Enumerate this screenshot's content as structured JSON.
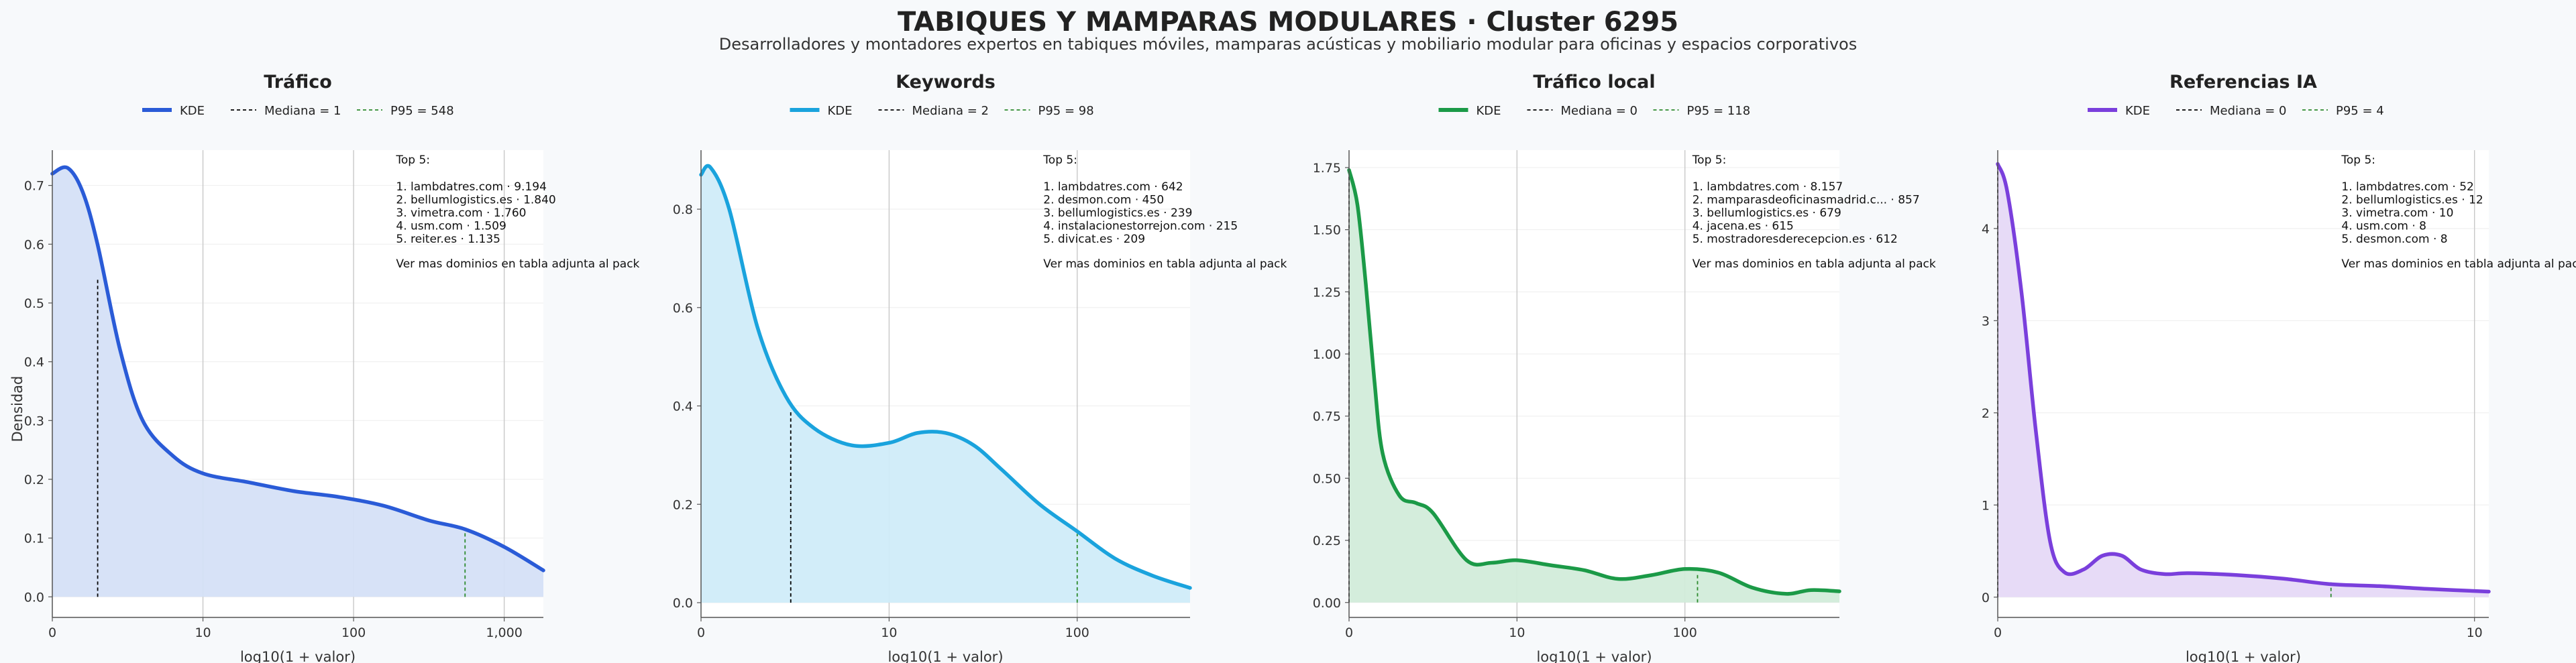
{
  "page": {
    "title": "TABIQUES Y MAMPARAS MODULARES · Cluster 6295",
    "subtitle": "Desarrolladores y montadores expertos en tabiques móviles, mamparas acústicas y mobiliario modular para oficinas y espacios corporativos",
    "shared_ylabel": "Densidad"
  },
  "colors": {
    "background": "#f7f9fb",
    "median_line": "#000000",
    "p95_line": "#2e8b2e",
    "grid": "#c8c8c8"
  },
  "chart_data": [
    {
      "type": "area",
      "title": "Tráfico",
      "color": "#2a5bd7",
      "fill": "#d5e0f7",
      "xlabel": "log10(1 + valor)",
      "ylabel": "Densidad",
      "xscale": "log10(1+x)",
      "xlim": [
        0,
        3.26
      ],
      "ylim": [
        -0.035,
        0.76
      ],
      "xticks": [
        {
          "v": 0,
          "label": "0"
        },
        {
          "v": 1,
          "label": "10"
        },
        {
          "v": 2,
          "label": "100"
        },
        {
          "v": 3,
          "label": "1,000"
        }
      ],
      "yticks": [
        {
          "v": 0,
          "label": "0.0"
        },
        {
          "v": 0.1,
          "label": "0.1"
        },
        {
          "v": 0.2,
          "label": "0.2"
        },
        {
          "v": 0.3,
          "label": "0.3"
        },
        {
          "v": 0.4,
          "label": "0.4"
        },
        {
          "v": 0.5,
          "label": "0.5"
        },
        {
          "v": 0.6,
          "label": "0.6"
        },
        {
          "v": 0.7,
          "label": "0.7"
        }
      ],
      "x": [
        0,
        0.1,
        0.2,
        0.3,
        0.45,
        0.6,
        0.8,
        1.0,
        1.3,
        1.6,
        1.9,
        2.2,
        2.5,
        2.74,
        3.0,
        3.26
      ],
      "y": [
        0.72,
        0.73,
        0.69,
        0.6,
        0.42,
        0.3,
        0.24,
        0.21,
        0.195,
        0.18,
        0.17,
        0.155,
        0.13,
        0.115,
        0.085,
        0.045
      ],
      "legend": {
        "kde": "KDE",
        "median": "Mediana = 1",
        "p95": "P95 = 548"
      },
      "median_x": 0.301,
      "median_y": 0.54,
      "p95_x": 2.74,
      "p95_y": 0.115,
      "top5": {
        "heading": "Top 5:",
        "items": [
          "1. lambdatres.com · 9.194",
          "2. bellumlogistics.es · 1.840",
          "3. vimetra.com · 1.760",
          "4. usm.com · 1.509",
          "5. reiter.es · 1.135"
        ],
        "footer": "Ver mas dominios en tabla adjunta al pack"
      }
    },
    {
      "type": "area",
      "title": "Keywords",
      "color": "#1aa3dd",
      "fill": "#d0ecf9",
      "xlabel": "log10(1 + valor)",
      "ylabel": "",
      "xscale": "log10(1+x)",
      "xlim": [
        0,
        2.6
      ],
      "ylim": [
        -0.03,
        0.92
      ],
      "xticks": [
        {
          "v": 0,
          "label": "0"
        },
        {
          "v": 1,
          "label": "10"
        },
        {
          "v": 2,
          "label": "100"
        }
      ],
      "yticks": [
        {
          "v": 0,
          "label": "0.0"
        },
        {
          "v": 0.2,
          "label": "0.2"
        },
        {
          "v": 0.4,
          "label": "0.4"
        },
        {
          "v": 0.6,
          "label": "0.6"
        },
        {
          "v": 0.8,
          "label": "0.8"
        }
      ],
      "x": [
        0,
        0.05,
        0.15,
        0.3,
        0.45,
        0.6,
        0.8,
        1.0,
        1.15,
        1.3,
        1.45,
        1.6,
        1.8,
        2.0,
        2.2,
        2.4,
        2.6
      ],
      "y": [
        0.87,
        0.885,
        0.8,
        0.56,
        0.42,
        0.355,
        0.32,
        0.325,
        0.345,
        0.345,
        0.32,
        0.27,
        0.2,
        0.145,
        0.09,
        0.055,
        0.03
      ],
      "legend": {
        "kde": "KDE",
        "median": "Mediana = 2",
        "p95": "P95 = 98"
      },
      "median_x": 0.477,
      "median_y": 0.39,
      "p95_x": 2.0,
      "p95_y": 0.14,
      "top5": {
        "heading": "Top 5:",
        "items": [
          "1. lambdatres.com · 642",
          "2. desmon.com · 450",
          "3. bellumlogistics.es · 239",
          "4. instalacionestorrejon.com · 215",
          "5. divicat.es · 209"
        ],
        "footer": "Ver mas dominios en tabla adjunta al pack"
      }
    },
    {
      "type": "area",
      "title": "Tráfico local",
      "color": "#1b9a47",
      "fill": "#d2ecda",
      "xlabel": "log10(1 + valor)",
      "ylabel": "",
      "xscale": "log10(1+x)",
      "xlim": [
        0,
        2.92
      ],
      "ylim": [
        -0.06,
        1.82
      ],
      "xticks": [
        {
          "v": 0,
          "label": "0"
        },
        {
          "v": 1,
          "label": "10"
        },
        {
          "v": 2,
          "label": "100"
        }
      ],
      "yticks": [
        {
          "v": 0,
          "label": "0.00"
        },
        {
          "v": 0.25,
          "label": "0.25"
        },
        {
          "v": 0.5,
          "label": "0.50"
        },
        {
          "v": 0.75,
          "label": "0.75"
        },
        {
          "v": 1.0,
          "label": "1.00"
        },
        {
          "v": 1.25,
          "label": "1.25"
        },
        {
          "v": 1.5,
          "label": "1.50"
        },
        {
          "v": 1.75,
          "label": "1.75"
        }
      ],
      "x": [
        0,
        0.05,
        0.1,
        0.15,
        0.2,
        0.3,
        0.4,
        0.5,
        0.7,
        0.85,
        1.0,
        1.2,
        1.4,
        1.6,
        1.8,
        2.0,
        2.2,
        2.4,
        2.6,
        2.75,
        2.92
      ],
      "y": [
        1.74,
        1.6,
        1.28,
        0.9,
        0.6,
        0.43,
        0.4,
        0.36,
        0.17,
        0.16,
        0.17,
        0.15,
        0.13,
        0.095,
        0.11,
        0.135,
        0.12,
        0.06,
        0.035,
        0.05,
        0.045
      ],
      "legend": {
        "kde": "KDE",
        "median": "Mediana = 0",
        "p95": "P95 = 118"
      },
      "median_x": 0,
      "median_y": 1.74,
      "p95_x": 2.075,
      "p95_y": 0.12,
      "top5": {
        "heading": "Top 5:",
        "items": [
          "1. lambdatres.com · 8.157",
          "2. mamparasdeoficinasmadrid.c... · 857",
          "3. bellumlogistics.es · 679",
          "4. jacena.es · 615",
          "5. mostradoresderecepcion.es · 612"
        ],
        "footer": "Ver mas dominios en tabla adjunta al pack"
      }
    },
    {
      "type": "area",
      "title": "Referencias IA",
      "color": "#7a3fdc",
      "fill": "#e6d9f7",
      "xlabel": "log10(1 + valor)",
      "ylabel": "",
      "xscale": "log10(1+x)",
      "xlim": [
        0,
        1.03
      ],
      "ylim": [
        -0.22,
        4.85
      ],
      "xticks": [
        {
          "v": 0,
          "label": "0"
        },
        {
          "v": 1,
          "label": "10"
        }
      ],
      "yticks": [
        {
          "v": 0,
          "label": "0"
        },
        {
          "v": 1,
          "label": "1"
        },
        {
          "v": 2,
          "label": "2"
        },
        {
          "v": 3,
          "label": "3"
        },
        {
          "v": 4,
          "label": "4"
        }
      ],
      "x": [
        0,
        0.02,
        0.05,
        0.08,
        0.11,
        0.14,
        0.18,
        0.22,
        0.26,
        0.3,
        0.35,
        0.4,
        0.5,
        0.6,
        0.7,
        0.8,
        0.9,
        1.03
      ],
      "y": [
        4.7,
        4.4,
        3.3,
        1.8,
        0.6,
        0.27,
        0.3,
        0.45,
        0.45,
        0.3,
        0.25,
        0.26,
        0.24,
        0.2,
        0.14,
        0.12,
        0.09,
        0.06
      ],
      "legend": {
        "kde": "KDE",
        "median": "Mediana = 0",
        "p95": "P95 = 4"
      },
      "median_x": 0,
      "median_y": 4.7,
      "p95_x": 0.699,
      "p95_y": 0.16,
      "top5": {
        "heading": "Top 5:",
        "items": [
          "1. lambdatres.com · 52",
          "2. bellumlogistics.es · 12",
          "3. vimetra.com · 10",
          "4. usm.com · 8",
          "5. desmon.com · 8"
        ],
        "footer": "Ver mas dominios en tabla adjunta al pack"
      }
    }
  ]
}
